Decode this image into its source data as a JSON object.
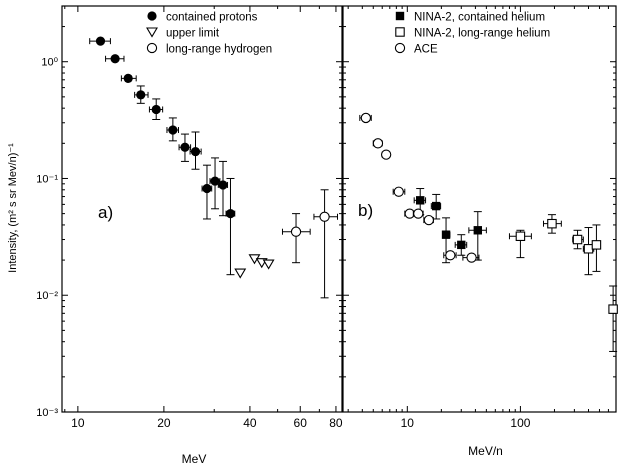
{
  "y_axis_label": "Intensity, (m² s sr Mev/n)⁻¹",
  "colors": {
    "ink": "#000000",
    "background": "#ffffff"
  },
  "chart_data": [
    {
      "type": "scatter",
      "panel_label": "a)",
      "xlabel": "MeV",
      "ylabel": "Intensity, (m² s sr Mev/n)⁻¹",
      "x_scale": "log",
      "y_scale": "log",
      "xlim": [
        8.8,
        84
      ],
      "ylim": [
        0.001,
        3
      ],
      "x_ticks": [
        10,
        20,
        40,
        60,
        80
      ],
      "y_ticks": [
        0.001,
        0.01,
        0.1,
        1
      ],
      "y_tick_labels": [
        "10⁻³",
        "10⁻²",
        "10⁻¹",
        "10⁰"
      ],
      "legend": {
        "placement": "top-center"
      },
      "series": [
        {
          "name": "contained protons",
          "marker": "filled-circle",
          "points": [
            {
              "x": 12,
              "y": 1.5,
              "xlo": 11,
              "xhi": 13
            },
            {
              "x": 13.5,
              "y": 1.06,
              "xlo": 12.5,
              "xhi": 14.5
            },
            {
              "x": 15,
              "y": 0.72,
              "xlo": 14.2,
              "xhi": 16
            },
            {
              "x": 16.6,
              "y": 0.52,
              "xlo": 15.8,
              "xhi": 17.6,
              "ylo": 0.44,
              "yhi": 0.62
            },
            {
              "x": 18.8,
              "y": 0.39,
              "xlo": 17.8,
              "xhi": 19.8,
              "ylo": 0.32,
              "yhi": 0.48
            },
            {
              "x": 21.5,
              "y": 0.26,
              "xlo": 20.5,
              "xhi": 22.5,
              "ylo": 0.21,
              "yhi": 0.33
            },
            {
              "x": 23.7,
              "y": 0.185,
              "xlo": 22.6,
              "xhi": 24.8,
              "ylo": 0.14,
              "yhi": 0.24
            },
            {
              "x": 25.8,
              "y": 0.17,
              "xlo": 24.7,
              "xhi": 27,
              "ylo": 0.12,
              "yhi": 0.25
            },
            {
              "x": 28.3,
              "y": 0.082,
              "xlo": 27.2,
              "xhi": 29.4,
              "ylo": 0.045,
              "yhi": 0.13
            },
            {
              "x": 30.2,
              "y": 0.095,
              "xlo": 29,
              "xhi": 31.4,
              "ylo": 0.055,
              "yhi": 0.15
            },
            {
              "x": 32.2,
              "y": 0.088,
              "xlo": 31,
              "xhi": 33.4,
              "ylo": 0.048,
              "yhi": 0.14
            },
            {
              "x": 34.2,
              "y": 0.05,
              "xlo": 33,
              "xhi": 35.4,
              "ylo": 0.015,
              "yhi": 0.1
            }
          ]
        },
        {
          "name": "upper limit",
          "marker": "open-triangle-down",
          "points": [
            {
              "x": 37,
              "y": 0.0155
            },
            {
              "x": 41.5,
              "y": 0.0205
            },
            {
              "x": 44,
              "y": 0.019
            },
            {
              "x": 46.5,
              "y": 0.0185
            }
          ]
        },
        {
          "name": "long-range hydrogen",
          "marker": "open-circle",
          "points": [
            {
              "x": 58,
              "y": 0.035,
              "xlo": 52,
              "xhi": 65,
              "ylo": 0.019,
              "yhi": 0.05
            },
            {
              "x": 73,
              "y": 0.047,
              "xlo": 67,
              "xhi": 81,
              "ylo": 0.0095,
              "yhi": 0.08
            }
          ]
        }
      ]
    },
    {
      "type": "scatter",
      "panel_label": "b)",
      "xlabel": "MeV/n",
      "x_scale": "log",
      "y_scale": "log",
      "xlim": [
        2.7,
        700
      ],
      "ylim": [
        0.001,
        3
      ],
      "x_ticks": [
        10,
        100
      ],
      "legend": {
        "placement": "top-center"
      },
      "series": [
        {
          "name": "NINA-2, contained helium",
          "marker": "filled-square",
          "points": [
            {
              "x": 13,
              "y": 0.065,
              "xlo": 11.5,
              "xhi": 14.5,
              "ylo": 0.049,
              "yhi": 0.082
            },
            {
              "x": 18,
              "y": 0.058,
              "xlo": 16.3,
              "xhi": 19.7,
              "ylo": 0.045,
              "yhi": 0.073
            },
            {
              "x": 22,
              "y": 0.033,
              "xlo": 20.5,
              "xhi": 23.8,
              "ylo": 0.019,
              "yhi": 0.046
            },
            {
              "x": 30,
              "y": 0.027,
              "xlo": 26.5,
              "xhi": 33.5,
              "ylo": 0.022,
              "yhi": 0.033
            },
            {
              "x": 42,
              "y": 0.036,
              "xlo": 35,
              "xhi": 50,
              "ylo": 0.02,
              "yhi": 0.052
            }
          ]
        },
        {
          "name": "NINA-2, long-range helium",
          "marker": "open-square",
          "points": [
            {
              "x": 100,
              "y": 0.032,
              "xlo": 80,
              "xhi": 125,
              "ylo": 0.021,
              "yhi": 0.036
            },
            {
              "x": 190,
              "y": 0.041,
              "xlo": 160,
              "xhi": 230,
              "ylo": 0.034,
              "yhi": 0.049
            },
            {
              "x": 320,
              "y": 0.03,
              "xlo": 290,
              "xhi": 360,
              "ylo": 0.025,
              "yhi": 0.036
            },
            {
              "x": 400,
              "y": 0.025,
              "xlo": 360,
              "xhi": 445,
              "ylo": 0.015,
              "yhi": 0.038
            },
            {
              "x": 470,
              "y": 0.027,
              "xlo": 440,
              "xhi": 510,
              "ylo": 0.016,
              "yhi": 0.04
            },
            {
              "x": 660,
              "y": 0.0076,
              "xlo": 620,
              "xhi": 700,
              "ylo": 0.0033,
              "yhi": 0.012
            }
          ]
        },
        {
          "name": "ACE",
          "marker": "open-circle",
          "points": [
            {
              "x": 4.3,
              "y": 0.33,
              "xlo": 3.8,
              "xhi": 4.8
            },
            {
              "x": 5.5,
              "y": 0.2,
              "xlo": 5,
              "xhi": 6
            },
            {
              "x": 6.5,
              "y": 0.16,
              "xlo": 6,
              "xhi": 7
            },
            {
              "x": 8.4,
              "y": 0.077,
              "xlo": 7.5,
              "xhi": 9.5
            },
            {
              "x": 10.5,
              "y": 0.05,
              "xlo": 9.5,
              "xhi": 11.5
            },
            {
              "x": 12.5,
              "y": 0.05,
              "xlo": 11.3,
              "xhi": 13.8
            },
            {
              "x": 15.5,
              "y": 0.044,
              "xlo": 14,
              "xhi": 17
            },
            {
              "x": 24,
              "y": 0.022,
              "xlo": 21,
              "xhi": 27
            },
            {
              "x": 37,
              "y": 0.021,
              "xlo": 31,
              "xhi": 43
            }
          ]
        }
      ]
    }
  ]
}
